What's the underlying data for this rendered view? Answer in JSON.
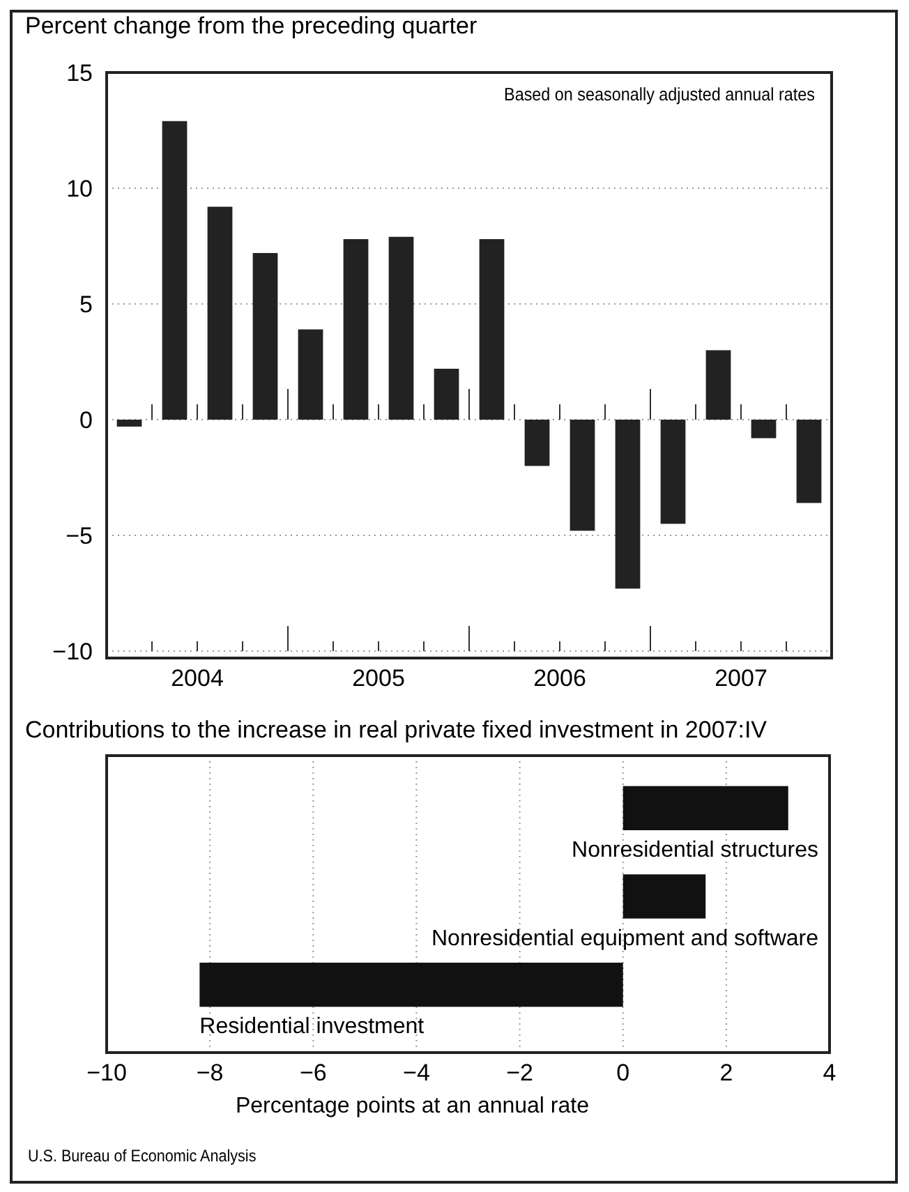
{
  "chart_data": [
    {
      "type": "bar",
      "title": "Percent change from the preceding quarter",
      "categories": [
        null,
        "2004",
        null,
        null,
        null,
        "2005",
        null,
        null,
        null,
        "2006",
        null,
        null,
        null,
        "2007",
        null,
        null
      ],
      "values": [
        -0.3,
        12.9,
        9.2,
        7.2,
        3.9,
        7.8,
        7.9,
        2.2,
        7.8,
        -2.0,
        -4.8,
        -7.3,
        -4.5,
        3.0,
        -0.8,
        -3.6
      ],
      "color": "#222222",
      "ylim": [
        -10.3,
        15
      ],
      "yticks": [
        {
          "value": -10,
          "label": "−10"
        },
        {
          "value": -5,
          "label": "−5"
        },
        0,
        5,
        10,
        15
      ],
      "grid": "y",
      "annotations": [
        "Based on seasonally adjusted annual rates"
      ]
    },
    {
      "type": "bar",
      "orientation": "horizontal",
      "title": "Contributions to the increase in real private fixed investment in 2007:IV",
      "categories": [
        "Nonresidential structures",
        "Nonresidential equipment and software",
        "Residential investment"
      ],
      "values": [
        3.2,
        1.6,
        -8.2
      ],
      "color": "#111111",
      "xlim": [
        -10,
        4
      ],
      "xticks": [
        {
          "value": -10,
          "label": "−10"
        },
        {
          "value": -8,
          "label": "−8"
        },
        {
          "value": -6,
          "label": "−6"
        },
        {
          "value": -4,
          "label": "−4"
        },
        {
          "value": -2,
          "label": "−2"
        },
        0,
        2,
        4
      ],
      "grid": "x",
      "xlabel": "Percentage points at an annual rate",
      "annotations": [
        "U.S. Bureau of Economic Analysis"
      ]
    }
  ]
}
